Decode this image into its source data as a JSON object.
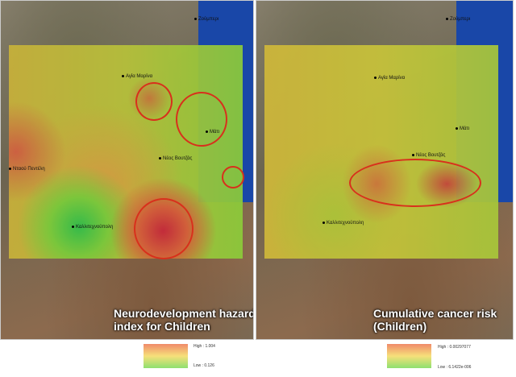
{
  "maps": [
    {
      "title_line1": "Neurodevelopment hazard",
      "title_line2": "index for Children",
      "legend": {
        "high": "High : 1.004",
        "low": "Low : 0.126"
      },
      "places": {
        "top": "Ζούμπερι",
        "agia_marina": "Αγία Μαρίνα",
        "mati": "Μάτι",
        "neos_voutzas": "Νέος Βουτζάς",
        "ntaou_penteli": "Νταού Πεντέλη",
        "kallitechnoupoli": "Καλλιτεχνούπολη"
      }
    },
    {
      "title_line1": "Cumulative cancer risk",
      "title_line2": "(Children)",
      "legend": {
        "high": "High : 0.00297077",
        "low": "Low : 6.1422e-006"
      },
      "places": {
        "top": "Ζούμπερι",
        "agia_marina": "Αγία Μαρίνα",
        "mati": "Μάτι",
        "neos_voutzas": "Νέος Βουτζάς",
        "kallitechnoupoli": "Καλλιτεχνούπολη"
      }
    }
  ],
  "colors": {
    "high": "#f08a6a",
    "mid": "#f6e07a",
    "low": "#8ee070",
    "circle": "#d8301c",
    "sea": "#1947a8"
  }
}
